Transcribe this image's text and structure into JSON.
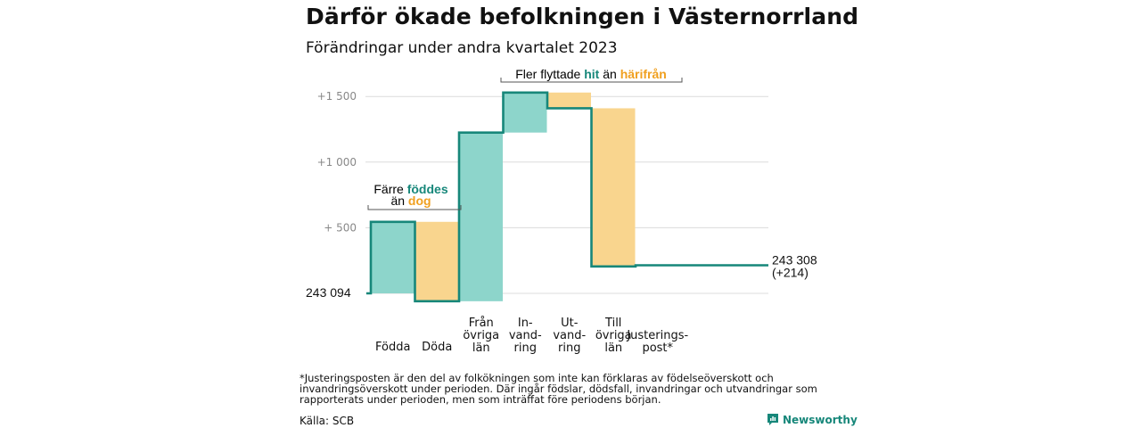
{
  "title": "Därför ökade befolkningen i Västernorrland",
  "subtitle": "Förändringar under andra kvartalet 2023",
  "footnote": "*Justeringsposten är den del av folkökningen som inte kan förklaras av födelseöverskott och invandringsöverskott under perioden. Där ingår födslar, dödsfall, invandringar och utvandringar som rapporterats under perioden, men som inträffat före periodens början.",
  "source": "Källa: SCB",
  "brand": "Newsworthy",
  "colors": {
    "increase": "#8dd5cb",
    "decrease": "#f9d58e",
    "line": "#17877a",
    "teal_text": "#17877a",
    "orange_text": "#f0a020"
  },
  "annotations": {
    "births_deaths": {
      "line1": "Färre",
      "line1_b": "föddes",
      "line2": "än",
      "line2_b": "dog"
    },
    "migration": {
      "a": "Fler flyttade",
      "b": "hit",
      "c": "än",
      "d": "härifrån"
    }
  },
  "chart_data": {
    "type": "waterfall",
    "title": "Därför ökade befolkningen i Västernorrland",
    "subtitle": "Förändringar under andra kvartalet 2023",
    "start_value": 243094,
    "start_label": "243  094",
    "end_value": 243308,
    "end_label": "243 308",
    "end_change_label": "(+214)",
    "y_ticks": [
      {
        "offset": 500,
        "label": "+  500"
      },
      {
        "offset": 1000,
        "label": "+1  000"
      },
      {
        "offset": 1500,
        "label": "+1  500"
      }
    ],
    "ylim": [
      -60,
      1620
    ],
    "steps": [
      {
        "label": "Födda",
        "value": 545,
        "kind": "increase"
      },
      {
        "label": "Döda",
        "value": -605,
        "kind": "decrease"
      },
      {
        "label": "Från övriga län",
        "label_lines": [
          "Från",
          "övriga",
          "län"
        ],
        "value": 1285,
        "kind": "increase"
      },
      {
        "label": "Invandring",
        "label_lines": [
          "In-",
          "vand-",
          "ring"
        ],
        "value": 305,
        "kind": "increase"
      },
      {
        "label": "Utvandring",
        "label_lines": [
          "Ut-",
          "vand-",
          "ring"
        ],
        "value": -120,
        "kind": "decrease"
      },
      {
        "label": "Till övriga län",
        "label_lines": [
          "Till",
          "övriga",
          "län"
        ],
        "value": -1205,
        "kind": "decrease"
      },
      {
        "label": "Justeringspost*",
        "label_lines": [
          "Justerings-",
          "post*"
        ],
        "value": 9,
        "kind": "adjustment"
      }
    ],
    "grid": true
  }
}
